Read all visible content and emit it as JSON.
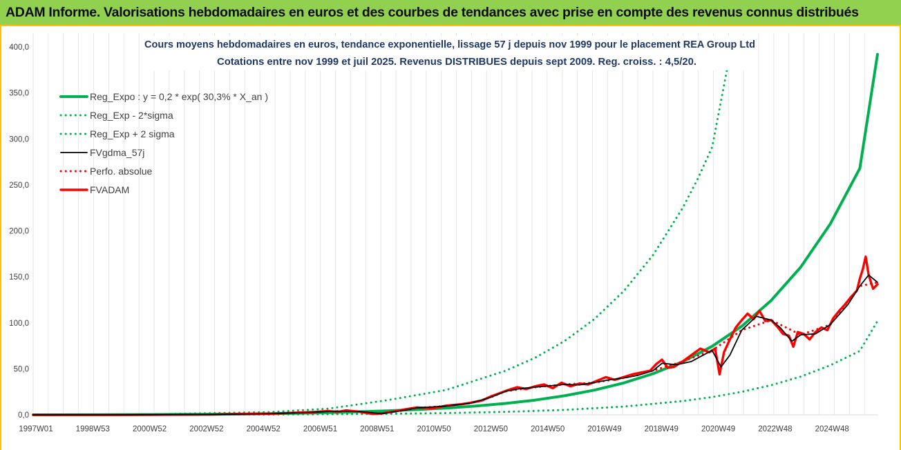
{
  "header": {
    "banner_title": "ADAM Informe. Valorisations hebdomadaires en euros et des courbes de tendances avec prise en compte des revenus connus distribués"
  },
  "colors": {
    "banner_bg": "#92d050",
    "frame": "#ffc000",
    "reg_expo": "#00b050",
    "fvgdma": "#000000",
    "fvadam": "#ff0000",
    "grid": "#e6e6e6",
    "title_text": "#1f3864"
  },
  "chart_data": {
    "type": "line",
    "title": "Cours moyens hebdomadaires en euros, tendance exponentielle, lissage 57 j depuis nov 1999 pour le placement REA Group Ltd",
    "subtitle": "Cotations entre nov 1999 et juil 2025. Revenus DISTRIBUES depuis sept 2009. Reg. croiss. : 4,5/20.",
    "xlabel": "",
    "ylabel": "",
    "ylim": [
      0,
      400
    ],
    "y_ticks": [
      "0,0",
      "50,0",
      "100,0",
      "150,0",
      "200,0",
      "250,0",
      "300,0",
      "350,0",
      "400,0"
    ],
    "x_ticks": [
      "1997W01",
      "1998W53",
      "2000W52",
      "2002W52",
      "2004W52",
      "2006W51",
      "2008W51",
      "2010W50",
      "2012W50",
      "2014W50",
      "2016W49",
      "2018W49",
      "2020W49",
      "2022W48",
      "2024W48"
    ],
    "xlim": [
      1997.0,
      2025.6
    ],
    "grid": "vertical",
    "legend_position": "top-left",
    "series": [
      {
        "name": "Reg_Expo : y = 0,2 * exp( 30,3% *  X_an )",
        "color": "#00b050",
        "style": "solid-thick",
        "x": [
          1997.0,
          1999.0,
          2001.0,
          2003.0,
          2005.0,
          2007.0,
          2009.0,
          2010.0,
          2011.0,
          2012.0,
          2013.0,
          2014.0,
          2015.0,
          2016.0,
          2017.0,
          2018.0,
          2019.0,
          2020.0,
          2021.0,
          2022.0,
          2023.0,
          2024.0,
          2025.0,
          2025.6
        ],
        "y": [
          0.0,
          0.1,
          0.3,
          0.6,
          1.2,
          2.4,
          4.3,
          5.7,
          7.3,
          9.5,
          12.4,
          16.0,
          20.7,
          26.8,
          34.6,
          44.7,
          57.7,
          74.5,
          96.3,
          124.4,
          160.6,
          207.5,
          268.0,
          392.0
        ]
      },
      {
        "name": "Reg_Exp - 2*sigma",
        "color": "#00b050",
        "style": "dotted",
        "x": [
          1997.0,
          2001.0,
          2005.0,
          2009.0,
          2011.0,
          2013.0,
          2015.0,
          2017.0,
          2019.0,
          2020.0,
          2021.0,
          2022.0,
          2023.0,
          2024.0,
          2025.0,
          2025.6
        ],
        "y": [
          0.0,
          0.1,
          0.3,
          1.1,
          1.9,
          3.2,
          5.3,
          8.9,
          14.9,
          19.3,
          25.0,
          32.2,
          41.6,
          53.8,
          69.4,
          102.0
        ]
      },
      {
        "name": "Reg_Exp + 2 sigma",
        "color": "#00b050",
        "style": "dotted",
        "x": [
          1997.0,
          2001.0,
          2005.0,
          2007.0,
          2009.0,
          2011.0,
          2013.0,
          2014.0,
          2015.0,
          2016.0,
          2017.0,
          2018.0,
          2019.0,
          2019.5,
          2020.0,
          2020.5
        ],
        "y": [
          0.0,
          0.6,
          2.9,
          6.7,
          15.9,
          27.1,
          47.9,
          62.0,
          80.2,
          103.8,
          134.3,
          173.8,
          224.9,
          255.9,
          291.0,
          375.0
        ]
      },
      {
        "name": "FVgdma_57j",
        "color": "#000000",
        "style": "solid",
        "x": [
          1997.0,
          1999.8,
          2003.0,
          2005.0,
          2006.5,
          2007.2,
          2008.0,
          2008.8,
          2009.5,
          2010.0,
          2011.0,
          2011.8,
          2012.5,
          2013.0,
          2013.5,
          2014.0,
          2014.5,
          2015.0,
          2015.5,
          2016.0,
          2016.5,
          2017.0,
          2017.5,
          2018.0,
          2018.3,
          2018.8,
          2019.3,
          2019.7,
          2020.0,
          2020.3,
          2020.6,
          2021.0,
          2021.5,
          2022.0,
          2022.3,
          2022.7,
          2023.0,
          2023.5,
          2024.0,
          2024.3,
          2024.6,
          2025.0,
          2025.3,
          2025.6
        ],
        "y": [
          0.0,
          0.0,
          0.3,
          1.2,
          2.8,
          4.0,
          3.8,
          1.2,
          4.5,
          7.5,
          9.5,
          12.5,
          19.0,
          25.5,
          28.5,
          30.0,
          31.5,
          33.0,
          32.5,
          35.0,
          38.0,
          40.0,
          43.0,
          48.0,
          56.0,
          54.5,
          58.0,
          65.0,
          70.0,
          52.0,
          65.0,
          92.0,
          107.0,
          103.0,
          95.0,
          80.0,
          87.0,
          88.0,
          98.0,
          109.0,
          120.0,
          140.0,
          152.0,
          144.0
        ]
      },
      {
        "name": "Perfo. absolue",
        "color": "#ff0000",
        "style": "dotted",
        "x": [
          1997.0,
          1999.8,
          2003.0,
          2005.0,
          2006.5,
          2007.2,
          2008.0,
          2008.8,
          2009.5,
          2010.0,
          2011.0,
          2011.8,
          2012.5,
          2013.0,
          2014.0,
          2015.0,
          2016.0,
          2017.0,
          2018.0,
          2019.0,
          2020.0,
          2021.0,
          2022.0,
          2023.0,
          2024.0,
          2025.0,
          2025.6
        ],
        "y": [
          0.0,
          0.0,
          0.3,
          1.2,
          2.8,
          4.0,
          3.8,
          1.2,
          4.5,
          7.5,
          9.5,
          12.5,
          19.0,
          25.5,
          30.0,
          33.0,
          35.0,
          40.0,
          48.0,
          58.0,
          70.0,
          92.0,
          103.0,
          87.0,
          98.0,
          140.0,
          144.0
        ]
      },
      {
        "name": "FVADAM",
        "color": "#ff0000",
        "style": "solid-thick",
        "x": [
          1997.0,
          1999.8,
          2003.0,
          2005.0,
          2006.5,
          2007.0,
          2007.3,
          2007.6,
          2008.0,
          2008.5,
          2008.8,
          2009.2,
          2009.6,
          2010.0,
          2010.5,
          2011.0,
          2011.5,
          2011.8,
          2012.2,
          2012.5,
          2012.8,
          2013.1,
          2013.4,
          2013.7,
          2014.0,
          2014.3,
          2014.6,
          2014.9,
          2015.2,
          2015.5,
          2015.8,
          2016.1,
          2016.4,
          2016.7,
          2017.0,
          2017.3,
          2017.6,
          2017.9,
          2018.1,
          2018.3,
          2018.5,
          2018.7,
          2019.0,
          2019.3,
          2019.6,
          2019.9,
          2020.1,
          2020.25,
          2020.4,
          2020.6,
          2020.8,
          2021.0,
          2021.2,
          2021.4,
          2021.6,
          2021.8,
          2022.0,
          2022.2,
          2022.4,
          2022.6,
          2022.75,
          2022.9,
          2023.1,
          2023.3,
          2023.5,
          2023.7,
          2023.9,
          2024.1,
          2024.3,
          2024.5,
          2024.7,
          2024.9,
          2025.0,
          2025.1,
          2025.2,
          2025.3,
          2025.45,
          2025.6
        ],
        "y": [
          0.0,
          0.0,
          0.3,
          1.2,
          3.0,
          4.2,
          3.0,
          4.8,
          3.5,
          1.0,
          1.5,
          3.5,
          6.0,
          8.0,
          7.0,
          10.0,
          11.5,
          13.0,
          15.5,
          20.0,
          23.5,
          27.0,
          30.0,
          28.0,
          31.0,
          33.0,
          29.0,
          35.0,
          31.0,
          34.0,
          33.0,
          37.0,
          41.0,
          38.0,
          41.0,
          44.0,
          46.0,
          48.0,
          55.0,
          60.0,
          51.0,
          52.0,
          58.0,
          65.0,
          72.0,
          68.0,
          72.0,
          44.0,
          68.0,
          82.0,
          95.0,
          103.0,
          110.0,
          104.0,
          113.0,
          102.0,
          103.0,
          96.0,
          88.0,
          86.0,
          74.0,
          90.0,
          88.0,
          82.0,
          90.0,
          95.0,
          92.0,
          105.0,
          113.0,
          120.0,
          128.0,
          135.0,
          148.0,
          158.0,
          172.0,
          152.0,
          137.0,
          142.0
        ]
      }
    ]
  }
}
